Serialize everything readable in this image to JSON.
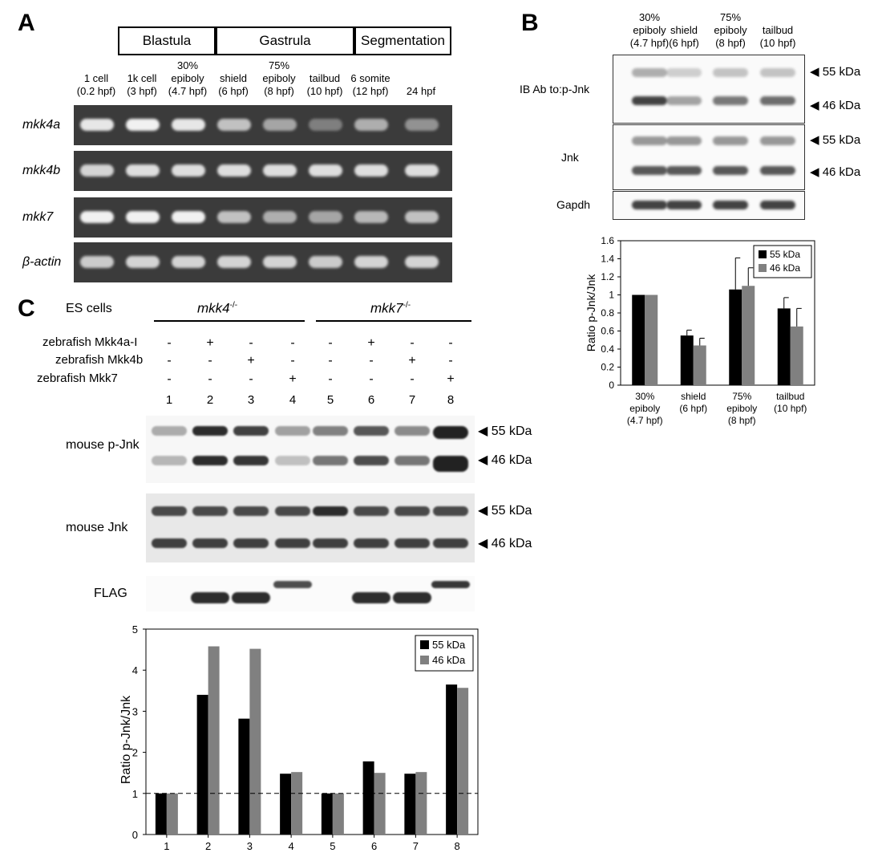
{
  "panelA": {
    "letter": "A",
    "stages": [
      "Blastula",
      "Gastrula",
      "Segmentation"
    ],
    "lanes": [
      {
        "l1": "1 cell",
        "l2": "(0.2 hpf)"
      },
      {
        "l1": "1k cell",
        "l2": "(3 hpf)"
      },
      {
        "l0": "30%",
        "l1": "epiboly",
        "l2": "(4.7 hpf)"
      },
      {
        "l1": "shield",
        "l2": "(6 hpf)"
      },
      {
        "l0": "75%",
        "l1": "epiboly",
        "l2": "(8 hpf)"
      },
      {
        "l1": "tailbud",
        "l2": "(10 hpf)"
      },
      {
        "l1": "6 somite",
        "l2": "(12 hpf)"
      },
      {
        "l2": "24 hpf"
      }
    ],
    "genes": [
      "mkk4a",
      "mkk4b",
      "mkk7",
      "β-actin"
    ],
    "band_intensity": [
      [
        0.9,
        0.95,
        0.9,
        0.7,
        0.55,
        0.35,
        0.6,
        0.45
      ],
      [
        0.8,
        0.85,
        0.85,
        0.85,
        0.85,
        0.85,
        0.85,
        0.85
      ],
      [
        0.95,
        0.95,
        0.95,
        0.7,
        0.6,
        0.55,
        0.65,
        0.7
      ],
      [
        0.75,
        0.8,
        0.8,
        0.8,
        0.8,
        0.75,
        0.8,
        0.8
      ]
    ]
  },
  "panelB": {
    "letter": "B",
    "lanes": [
      {
        "l0": "30%",
        "l1": "epiboly",
        "l2": "(4.7 hpf)"
      },
      {
        "l1": "shield",
        "l2": "(6 hpf)"
      },
      {
        "l0": "75%",
        "l1": "epiboly",
        "l2": "(8 hpf)"
      },
      {
        "l1": "tailbud",
        "l2": "(10 hpf)"
      }
    ],
    "blots": [
      {
        "label": "IB Ab to:p-Jnk"
      },
      {
        "label": "Jnk"
      },
      {
        "label": "Gapdh"
      }
    ],
    "kda55": "55 kDa",
    "kda46": "46 kDa",
    "chart_data": {
      "type": "bar",
      "categories": [
        "30% epiboly (4.7 hpf)",
        "shield (6 hpf)",
        "75% epiboly (8 hpf)",
        "tailbud (10 hpf)"
      ],
      "series": [
        {
          "name": "55 kDa",
          "values": [
            1.0,
            0.55,
            1.06,
            0.85
          ],
          "errors": [
            0,
            0.06,
            0.35,
            0.12
          ],
          "color": "#000000"
        },
        {
          "name": "46 kDa",
          "values": [
            1.0,
            0.44,
            1.1,
            0.65
          ],
          "errors": [
            0,
            0.08,
            0.2,
            0.2
          ],
          "color": "#808080"
        }
      ],
      "ylabel": "Ratio p-Jnk/Jnk",
      "ylim": [
        0,
        1.6
      ],
      "yticks": [
        "0",
        "0.2",
        "0.4",
        "0.6",
        "0.8",
        "1",
        "1.2",
        "1.4",
        "1.6"
      ],
      "legend": "top-right"
    }
  },
  "panelC": {
    "letter": "C",
    "es_cells": "ES cells",
    "genotype1": "mkk4",
    "genotype2": "mkk7",
    "sup": "-/-",
    "constructs": [
      {
        "label": "zebrafish Mkk4a-I",
        "signs": [
          "-",
          "+",
          "-",
          "-",
          "-",
          "+",
          "-",
          "-"
        ]
      },
      {
        "label": "zebrafish Mkk4b",
        "signs": [
          "-",
          "-",
          "+",
          "-",
          "-",
          "-",
          "+",
          "-"
        ]
      },
      {
        "label": "zebrafish Mkk7",
        "signs": [
          "-",
          "-",
          "-",
          "+",
          "-",
          "-",
          "-",
          "+"
        ]
      }
    ],
    "lane_numbers": [
      "1",
      "2",
      "3",
      "4",
      "5",
      "6",
      "7",
      "8"
    ],
    "blots": [
      {
        "label": "mouse p-Jnk"
      },
      {
        "label": "mouse Jnk"
      },
      {
        "label": "FLAG"
      }
    ],
    "kda55": "55 kDa",
    "kda46": "46 kDa",
    "chart_data": {
      "type": "bar",
      "categories": [
        "1",
        "2",
        "3",
        "4",
        "5",
        "6",
        "7",
        "8"
      ],
      "series": [
        {
          "name": "55 kDa",
          "values": [
            1.0,
            3.4,
            2.82,
            1.48,
            1.0,
            1.78,
            1.48,
            3.65
          ],
          "color": "#000000"
        },
        {
          "name": "46 kDa",
          "values": [
            1.0,
            4.58,
            4.52,
            1.52,
            1.0,
            1.5,
            1.52,
            3.57
          ],
          "color": "#808080"
        }
      ],
      "ylabel": "Ratio p-Jnk/Jnk",
      "ylim": [
        0,
        5
      ],
      "yticks": [
        "0",
        "1",
        "2",
        "3",
        "4",
        "5"
      ],
      "reference_line": 1,
      "legend": "top-right"
    }
  }
}
